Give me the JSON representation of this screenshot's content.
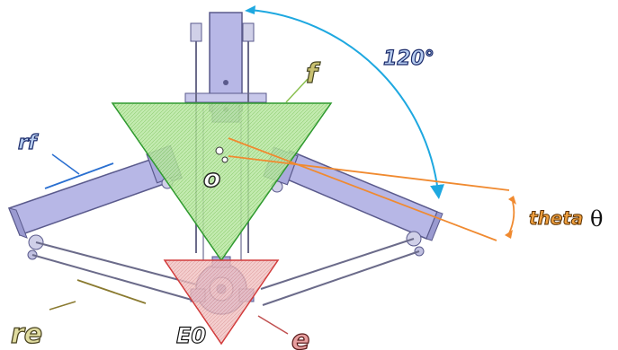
{
  "labels": {
    "angle_120": "120°",
    "f": "f",
    "rf": "rf",
    "o": "o",
    "theta_word": "theta",
    "theta_symbol": "θ",
    "re": "re",
    "e0": "E0",
    "e": "e"
  },
  "colors": {
    "arm_fill": "#b7b7e6",
    "arm_stroke": "#5a5a8c",
    "triangle_f_fill": "#a6e08a",
    "triangle_f_stroke": "#2f9a2f",
    "triangle_e_fill": "#ecb3b3",
    "triangle_e_stroke": "#d23c3c",
    "arc_120": "#1ea8e0",
    "theta_lines": "#f08a30",
    "rf_leader": "#2a6fd0",
    "re_leader": "#8a7a30",
    "f_leader": "#8ac050",
    "e_leader": "#c05050",
    "label_fill_f": "#c8c070",
    "label_fill_blue": "#b8cef0",
    "label_fill_theta": "#f0a040",
    "label_fill_e": "#e8a0a0",
    "label_fill_re": "#e0dca0"
  }
}
